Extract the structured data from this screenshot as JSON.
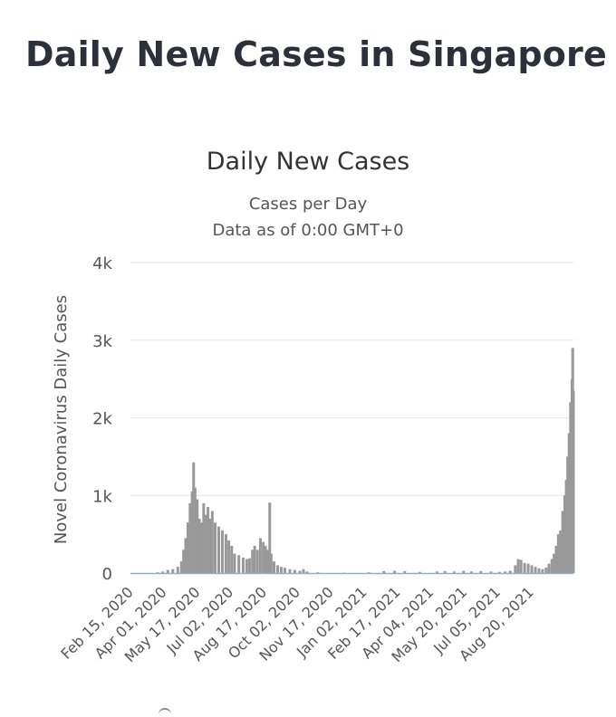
{
  "page": {
    "heading": "Daily New Cases in Singapore"
  },
  "chart_data": {
    "type": "bar",
    "title": "Daily New Cases",
    "subtitle": "Cases per Day",
    "subtitle2": "Data as of 0:00 GMT+0",
    "ylabel": "Novel Coronavirus Daily Cases",
    "xlabel": "",
    "ylim": [
      0,
      4000
    ],
    "yticks": [
      0,
      1000,
      2000,
      3000,
      4000
    ],
    "ytick_labels": [
      "0",
      "1k",
      "2k",
      "3k",
      "4k"
    ],
    "grid": true,
    "bar_color": "#999999",
    "grid_color": "#e6e6e6",
    "baseline_color": "#7cb5ec",
    "xtick_labels": [
      "Feb 15, 2020",
      "Apr 01, 2020",
      "May 17, 2020",
      "Jul 02, 2020",
      "Aug 17, 2020",
      "Oct 02, 2020",
      "Nov 17, 2020",
      "Jan 02, 2021",
      "Feb 17, 2021",
      "Apr 04, 2021",
      "May 20, 2021",
      "Jul 05, 2021",
      "Aug 20, 2021"
    ],
    "series": [
      {
        "points": [
          [
            "2020-03-01",
            10
          ],
          [
            "2020-03-08",
            20
          ],
          [
            "2020-03-15",
            40
          ],
          [
            "2020-03-22",
            50
          ],
          [
            "2020-03-29",
            80
          ],
          [
            "2020-04-03",
            150
          ],
          [
            "2020-04-06",
            300
          ],
          [
            "2020-04-09",
            450
          ],
          [
            "2020-04-12",
            650
          ],
          [
            "2020-04-15",
            900
          ],
          [
            "2020-04-18",
            1050
          ],
          [
            "2020-04-20",
            1426
          ],
          [
            "2020-04-22",
            1100
          ],
          [
            "2020-04-25",
            950
          ],
          [
            "2020-04-28",
            700
          ],
          [
            "2020-05-01",
            650
          ],
          [
            "2020-05-04",
            900
          ],
          [
            "2020-05-07",
            750
          ],
          [
            "2020-05-10",
            850
          ],
          [
            "2020-05-13",
            700
          ],
          [
            "2020-05-16",
            800
          ],
          [
            "2020-05-20",
            650
          ],
          [
            "2020-05-25",
            600
          ],
          [
            "2020-05-30",
            550
          ],
          [
            "2020-06-04",
            500
          ],
          [
            "2020-06-08",
            420
          ],
          [
            "2020-06-12",
            350
          ],
          [
            "2020-06-16",
            250
          ],
          [
            "2020-06-22",
            230
          ],
          [
            "2020-06-28",
            200
          ],
          [
            "2020-07-03",
            180
          ],
          [
            "2020-07-07",
            190
          ],
          [
            "2020-07-11",
            300
          ],
          [
            "2020-07-14",
            350
          ],
          [
            "2020-07-18",
            300
          ],
          [
            "2020-07-22",
            450
          ],
          [
            "2020-07-26",
            400
          ],
          [
            "2020-07-29",
            350
          ],
          [
            "2020-08-01",
            300
          ],
          [
            "2020-08-04",
            908
          ],
          [
            "2020-08-06",
            250
          ],
          [
            "2020-08-10",
            150
          ],
          [
            "2020-08-15",
            100
          ],
          [
            "2020-08-20",
            80
          ],
          [
            "2020-08-25",
            70
          ],
          [
            "2020-09-01",
            50
          ],
          [
            "2020-09-08",
            40
          ],
          [
            "2020-09-15",
            30
          ],
          [
            "2020-09-20",
            50
          ],
          [
            "2020-09-25",
            20
          ],
          [
            "2020-10-10",
            10
          ],
          [
            "2020-11-15",
            5
          ],
          [
            "2020-12-20",
            10
          ],
          [
            "2021-01-10",
            25
          ],
          [
            "2021-01-25",
            30
          ],
          [
            "2021-02-08",
            25
          ],
          [
            "2021-03-01",
            15
          ],
          [
            "2021-03-25",
            20
          ],
          [
            "2021-04-05",
            25
          ],
          [
            "2021-04-18",
            20
          ],
          [
            "2021-05-01",
            30
          ],
          [
            "2021-05-12",
            20
          ],
          [
            "2021-05-25",
            25
          ],
          [
            "2021-06-08",
            20
          ],
          [
            "2021-06-20",
            15
          ],
          [
            "2021-06-28",
            20
          ],
          [
            "2021-07-05",
            30
          ],
          [
            "2021-07-12",
            100
          ],
          [
            "2021-07-16",
            180
          ],
          [
            "2021-07-20",
            170
          ],
          [
            "2021-07-25",
            130
          ],
          [
            "2021-07-30",
            120
          ],
          [
            "2021-08-04",
            100
          ],
          [
            "2021-08-09",
            80
          ],
          [
            "2021-08-14",
            60
          ],
          [
            "2021-08-19",
            50
          ],
          [
            "2021-08-24",
            70
          ],
          [
            "2021-08-28",
            120
          ],
          [
            "2021-09-01",
            180
          ],
          [
            "2021-09-04",
            250
          ],
          [
            "2021-09-07",
            350
          ],
          [
            "2021-09-10",
            500
          ],
          [
            "2021-09-13",
            550
          ],
          [
            "2021-09-16",
            800
          ],
          [
            "2021-09-19",
            1000
          ],
          [
            "2021-09-21",
            1200
          ],
          [
            "2021-09-23",
            1500
          ],
          [
            "2021-09-25",
            1800
          ],
          [
            "2021-09-27",
            2200
          ],
          [
            "2021-09-29",
            2500
          ],
          [
            "2021-09-30",
            2900
          ],
          [
            "2021-10-01",
            2350
          ]
        ]
      }
    ]
  }
}
